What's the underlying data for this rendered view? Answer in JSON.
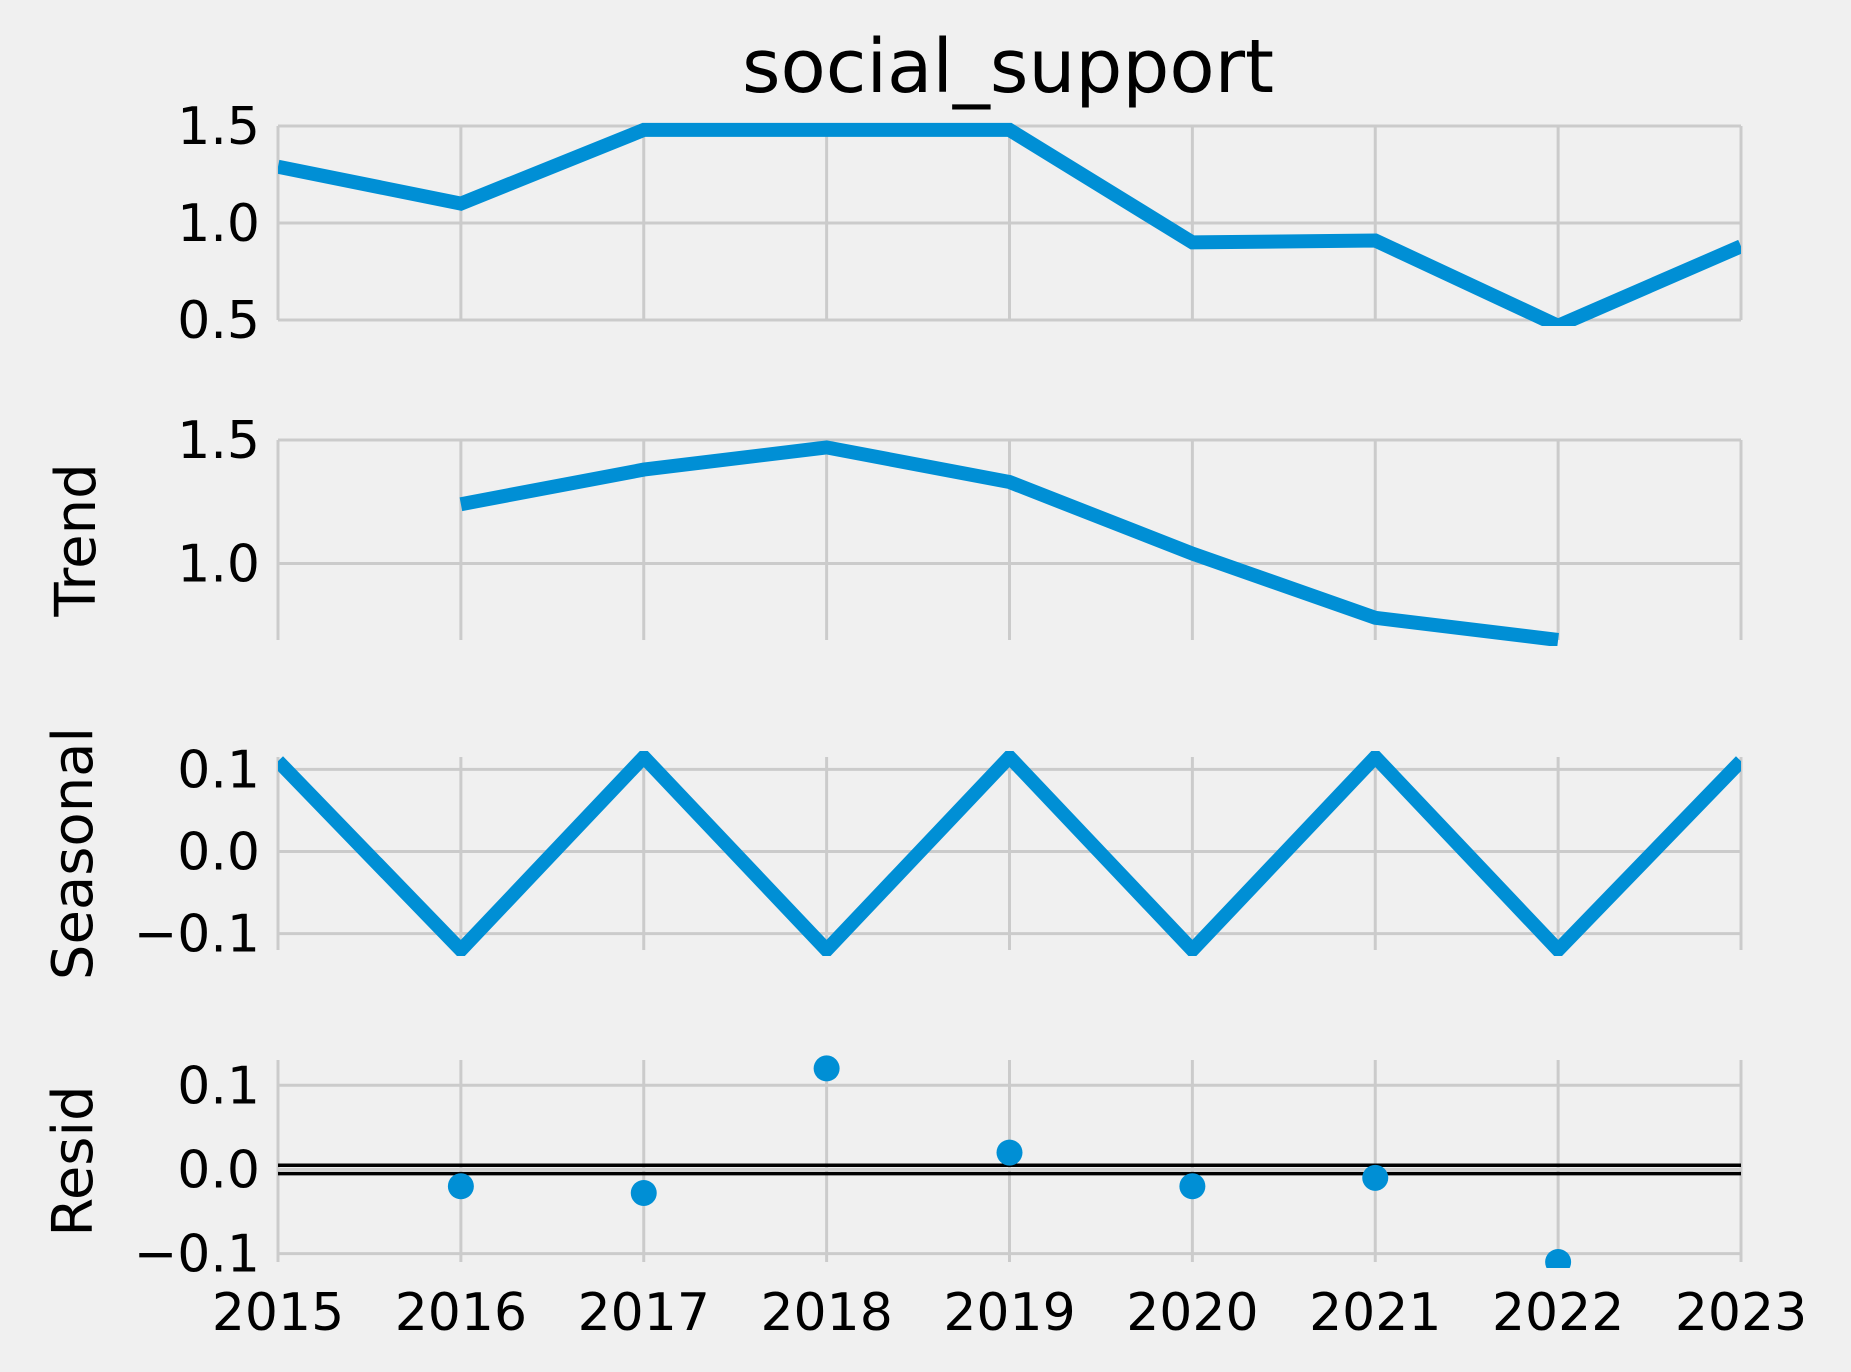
{
  "chart_data": {
    "type": "line",
    "title": "social_support",
    "x": [
      "2015",
      "2016",
      "2017",
      "2018",
      "2019",
      "2020",
      "2021",
      "2022",
      "2023"
    ],
    "xlim": [
      2015,
      2023
    ],
    "grid": true,
    "colors": {
      "series": "#008fd5",
      "background": "#f0f0f0",
      "grid": "#cbcbcb",
      "zero_line": "#000000"
    },
    "panels": [
      {
        "name": "observed",
        "ylabel": "",
        "type": "line",
        "ylim": [
          0.5,
          1.5
        ],
        "yticks": [
          0.5,
          1.0,
          1.5
        ],
        "ytick_labels": [
          "0.5",
          "1.0",
          "1.5"
        ],
        "values": [
          1.29,
          1.1,
          1.48,
          1.48,
          1.48,
          0.9,
          0.91,
          0.47,
          0.88
        ]
      },
      {
        "name": "trend",
        "ylabel": "Trend",
        "type": "line",
        "ylim": [
          0.69,
          1.5
        ],
        "yticks": [
          1.0,
          1.5
        ],
        "ytick_labels": [
          "1.0",
          "1.5"
        ],
        "values": [
          null,
          1.24,
          1.38,
          1.47,
          1.33,
          1.04,
          0.78,
          0.69,
          null
        ]
      },
      {
        "name": "seasonal",
        "ylabel": "Seasonal",
        "type": "line",
        "ylim": [
          -0.12,
          0.115
        ],
        "yticks": [
          -0.1,
          0.0,
          0.1
        ],
        "ytick_labels": [
          "−0.1",
          "0.0",
          "0.1"
        ],
        "values": [
          0.11,
          -0.12,
          0.115,
          -0.12,
          0.115,
          -0.12,
          0.115,
          -0.12,
          0.11
        ]
      },
      {
        "name": "resid",
        "ylabel": "Resid",
        "type": "scatter",
        "ylim": [
          -0.11,
          0.13
        ],
        "yticks": [
          -0.1,
          0.0,
          0.1
        ],
        "ytick_labels": [
          "−0.1",
          "0.0",
          "0.1"
        ],
        "values": [
          null,
          -0.02,
          -0.028,
          0.12,
          0.02,
          -0.02,
          -0.01,
          -0.11,
          null
        ],
        "zero_lines": [
          0.005,
          -0.005
        ]
      }
    ]
  }
}
